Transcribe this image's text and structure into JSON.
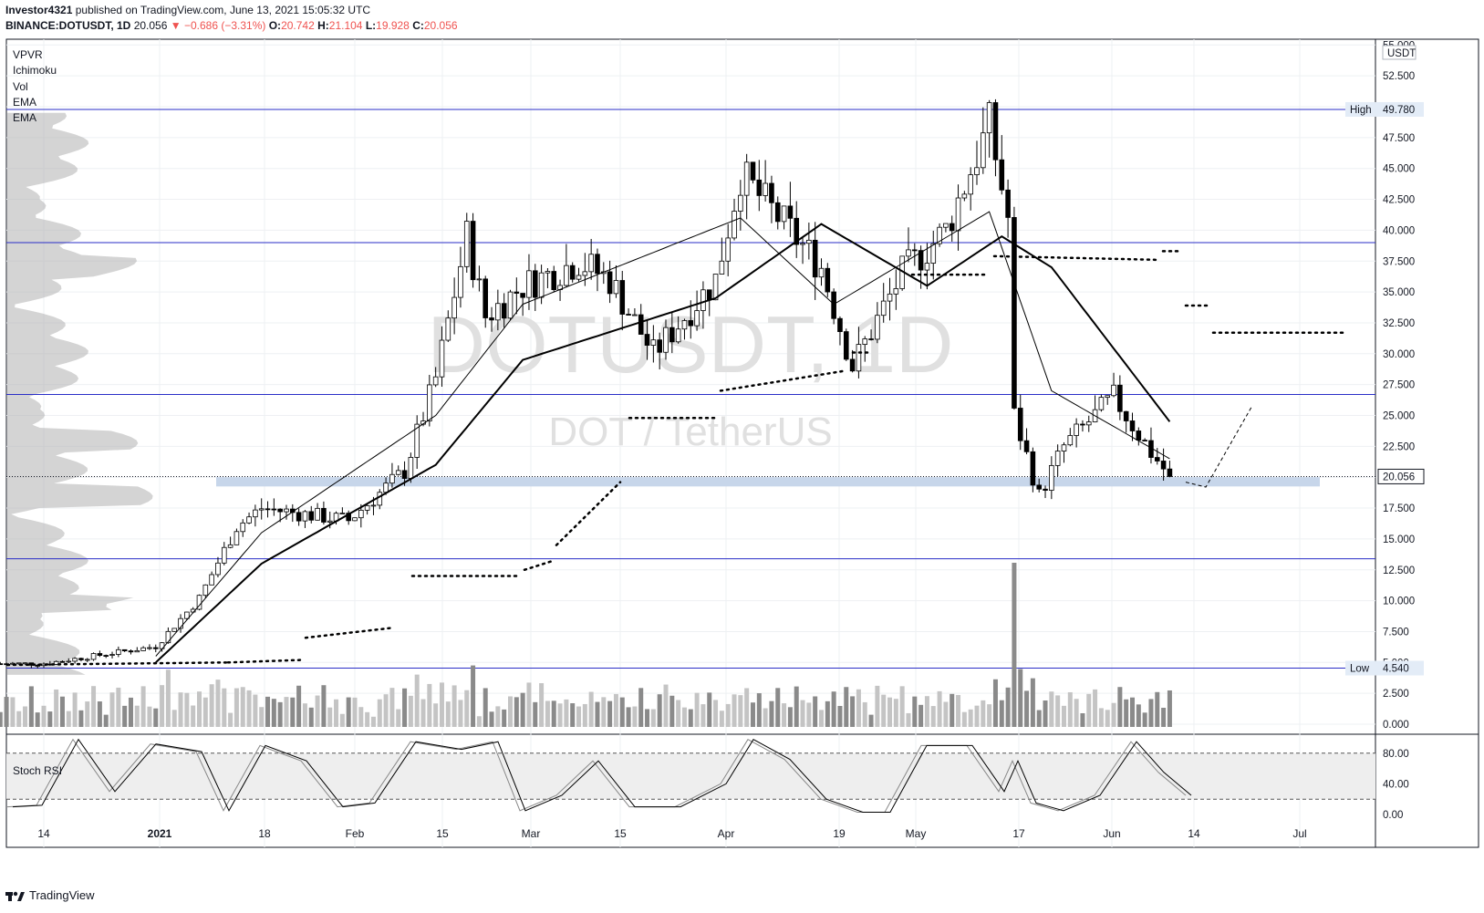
{
  "header": {
    "publisher": "Investor4321",
    "published_text": "published on TradingView.com, June 13, 2021 15:05:32 UTC",
    "symbol": "BINANCE:DOTUSDT, 1D",
    "last": "20.056",
    "change": "−0.686 (−3.31%)",
    "open_label": "O:",
    "open": "20.742",
    "high_label": "H:",
    "high": "21.104",
    "low_label": "L:",
    "low": "19.928",
    "close_label": "C:",
    "close": "20.056"
  },
  "indicators": [
    "VPVR",
    "Ichimoku",
    "Vol",
    "EMA",
    "EMA"
  ],
  "watermark": {
    "symbol": "DOTUSDT, 1D",
    "name": "DOT / TetherUS"
  },
  "price_axis": {
    "currency": "USDT",
    "ticks": [
      "55.000",
      "52.500",
      "50.000",
      "47.500",
      "45.000",
      "42.500",
      "40.000",
      "37.500",
      "35.000",
      "32.500",
      "30.000",
      "27.500",
      "25.000",
      "22.500",
      "20.000",
      "17.500",
      "15.000",
      "12.500",
      "10.000",
      "7.500",
      "5.000",
      "2.500",
      "0.000"
    ],
    "last_price_label": "20.056",
    "high_label": "High",
    "high_value": "49.780",
    "low_label": "Low",
    "low_value": "4.540"
  },
  "stoch_rsi": {
    "label": "Stoch RSI",
    "ticks": [
      "80.00",
      "40.00",
      "0.00"
    ]
  },
  "time_axis": [
    "14",
    "2021",
    "18",
    "Feb",
    "15",
    "Mar",
    "15",
    "Apr",
    "19",
    "May",
    "17",
    "Jun",
    "14",
    "Jul"
  ],
  "footer": {
    "brand": "TradingView"
  },
  "colors": {
    "up": "#ffffff",
    "down": "#000000",
    "level_line": "#2a2ec7",
    "support_zone": "#c7d6ea",
    "volume": "#9e9e9e",
    "vpvr": "#b0b0b0"
  },
  "chart_data": {
    "type": "candlestick",
    "symbol": "BINANCE:DOTUSDT",
    "interval": "1D",
    "ylim": [
      0,
      55
    ],
    "horizontal_levels": [
      49.78,
      39.0,
      26.7,
      13.4,
      4.54
    ],
    "support_zone": [
      19.4,
      20.0
    ],
    "ohlc_anchor_points": [
      {
        "x": "Dec 14",
        "close": 4.9
      },
      {
        "x": "Jan 1",
        "close": 6.3
      },
      {
        "x": "Jan 8",
        "close": 10.2
      },
      {
        "x": "Jan 14",
        "close": 16.0
      },
      {
        "x": "Jan 18",
        "close": 17.5
      },
      {
        "x": "Feb 1",
        "close": 16.5
      },
      {
        "x": "Feb 10",
        "close": 20.5
      },
      {
        "x": "Feb 15",
        "close": 28.0
      },
      {
        "x": "Feb 20",
        "close": 39.5
      },
      {
        "x": "Feb 23",
        "close": 33.0
      },
      {
        "x": "Mar 1",
        "close": 35.5
      },
      {
        "x": "Mar 10",
        "close": 37.5
      },
      {
        "x": "Mar 15",
        "close": 36.0
      },
      {
        "x": "Mar 22",
        "close": 30.0
      },
      {
        "x": "Apr 1",
        "close": 36.0
      },
      {
        "x": "Apr 5",
        "close": 44.5
      },
      {
        "x": "Apr 12",
        "close": 40.5
      },
      {
        "x": "Apr 18",
        "close": 37.0
      },
      {
        "x": "Apr 23",
        "close": 29.0
      },
      {
        "x": "May 1",
        "close": 36.5
      },
      {
        "x": "May 8",
        "close": 40.0
      },
      {
        "x": "May 15",
        "close": 48.5
      },
      {
        "x": "May 18",
        "close": 41.0
      },
      {
        "x": "May 19",
        "close": 25.0
      },
      {
        "x": "May 23",
        "close": 18.5
      },
      {
        "x": "May 27",
        "close": 22.5
      },
      {
        "x": "Jun 4",
        "close": 26.5
      },
      {
        "x": "Jun 10",
        "close": 22.0
      },
      {
        "x": "Jun 13",
        "close": 20.056
      }
    ],
    "ema_short_anchor": [
      {
        "x": "Jan 1",
        "y": 5.5
      },
      {
        "x": "Jan 18",
        "y": 15.5
      },
      {
        "x": "Feb 15",
        "y": 25.0
      },
      {
        "x": "Mar 1",
        "y": 34.0
      },
      {
        "x": "Apr 5",
        "y": 41.0
      },
      {
        "x": "Apr 20",
        "y": 34.0
      },
      {
        "x": "May 15",
        "y": 41.5
      },
      {
        "x": "May 25",
        "y": 27.0
      },
      {
        "x": "Jun 13",
        "y": 21.5
      }
    ],
    "ema_long_anchor": [
      {
        "x": "Jan 1",
        "y": 5.0
      },
      {
        "x": "Jan 18",
        "y": 13.0
      },
      {
        "x": "Feb 15",
        "y": 21.0
      },
      {
        "x": "Mar 1",
        "y": 29.5
      },
      {
        "x": "Apr 1",
        "y": 34.5
      },
      {
        "x": "Apr 18",
        "y": 40.5
      },
      {
        "x": "May 5",
        "y": 35.5
      },
      {
        "x": "May 17",
        "y": 39.5
      },
      {
        "x": "May 25",
        "y": 37.0
      },
      {
        "x": "Jun 13",
        "y": 24.5
      }
    ],
    "stoch_rsi_range": [
      0,
      100
    ]
  }
}
